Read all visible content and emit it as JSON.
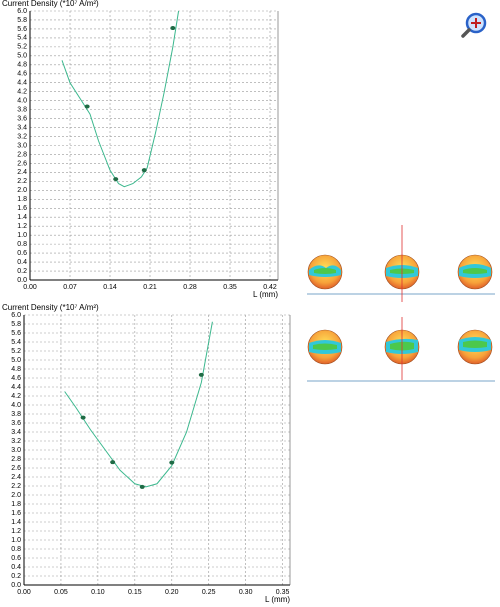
{
  "chart_data": [
    {
      "type": "line",
      "title": "Current Density (*10⁷ A/m²)",
      "x_label": "L (mm)",
      "xlim": [
        0,
        0.434
      ],
      "ylim": [
        0,
        6.0
      ],
      "grid": true,
      "xticks": [
        {
          "value": 0,
          "label": "0.00"
        },
        0.07,
        0.14,
        0.21,
        0.28,
        0.35,
        0.42
      ],
      "yticks": [
        {
          "value": 0,
          "label": "0.0"
        },
        0.2,
        0.4,
        0.6,
        0.8,
        {
          "value": 1,
          "label": "1.0"
        },
        1.2,
        1.4,
        1.6,
        1.8,
        {
          "value": 2,
          "label": "2.0"
        },
        2.2,
        2.4,
        2.6,
        2.8,
        {
          "value": 3,
          "label": "3.0"
        },
        3.2,
        3.4,
        3.6,
        3.8,
        {
          "value": 4,
          "label": "4.0"
        },
        4.2,
        4.4,
        4.6,
        4.8,
        {
          "value": 5,
          "label": "5.0"
        },
        5.2,
        5.4,
        5.6,
        5.8,
        {
          "value": 6,
          "label": "6.0"
        }
      ],
      "series": [
        {
          "type": "line",
          "color": "#3cb88e",
          "x": [
            0.056,
            0.07,
            0.09,
            0.105,
            0.12,
            0.14,
            0.155,
            0.165,
            0.18,
            0.195,
            0.205,
            0.22,
            0.235,
            0.25,
            0.26
          ],
          "values": [
            4.9,
            4.4,
            4.0,
            3.7,
            3.1,
            2.45,
            2.15,
            2.08,
            2.15,
            2.3,
            2.5,
            3.3,
            4.2,
            5.2,
            6.0
          ]
        },
        {
          "type": "scatter",
          "color": "#1f6b45",
          "x": [
            0.1,
            0.15,
            0.2,
            0.25
          ],
          "values": [
            3.87,
            2.25,
            2.45,
            5.62
          ]
        }
      ]
    },
    {
      "type": "line",
      "title": "Current Density (*10⁷ A/m²)",
      "x_label": "L (mm)",
      "xlim": [
        0,
        0.36
      ],
      "ylim": [
        0,
        6.0
      ],
      "grid": true,
      "xticks": [
        {
          "value": 0,
          "label": "0.00"
        },
        0.05,
        {
          "value": 0.1,
          "label": "0.10"
        },
        0.15,
        {
          "value": 0.2,
          "label": "0.20"
        },
        0.25,
        {
          "value": 0.3,
          "label": "0.30"
        },
        0.35
      ],
      "yticks": [
        {
          "value": 0,
          "label": "0.0"
        },
        0.2,
        0.4,
        0.6,
        0.8,
        {
          "value": 1,
          "label": "1.0"
        },
        1.2,
        1.4,
        1.6,
        1.8,
        {
          "value": 2,
          "label": "2.0"
        },
        2.2,
        2.4,
        2.6,
        2.8,
        {
          "value": 3,
          "label": "3.0"
        },
        3.2,
        3.4,
        3.6,
        3.8,
        {
          "value": 4,
          "label": "4.0"
        },
        4.2,
        4.4,
        4.6,
        4.8,
        {
          "value": 5,
          "label": "5.0"
        },
        5.2,
        5.4,
        5.6,
        5.8,
        {
          "value": 6,
          "label": "6.0"
        }
      ],
      "series": [
        {
          "type": "line",
          "color": "#3cb88e",
          "x": [
            0.055,
            0.07,
            0.09,
            0.11,
            0.13,
            0.15,
            0.165,
            0.18,
            0.2,
            0.22,
            0.24,
            0.255
          ],
          "values": [
            4.3,
            3.95,
            3.45,
            3.0,
            2.55,
            2.25,
            2.18,
            2.25,
            2.65,
            3.4,
            4.5,
            5.85
          ]
        },
        {
          "type": "scatter",
          "color": "#1f6b45",
          "x": [
            0.08,
            0.12,
            0.16,
            0.2,
            0.24
          ],
          "values": [
            3.72,
            2.73,
            2.18,
            2.72,
            4.67
          ]
        }
      ]
    }
  ]
}
